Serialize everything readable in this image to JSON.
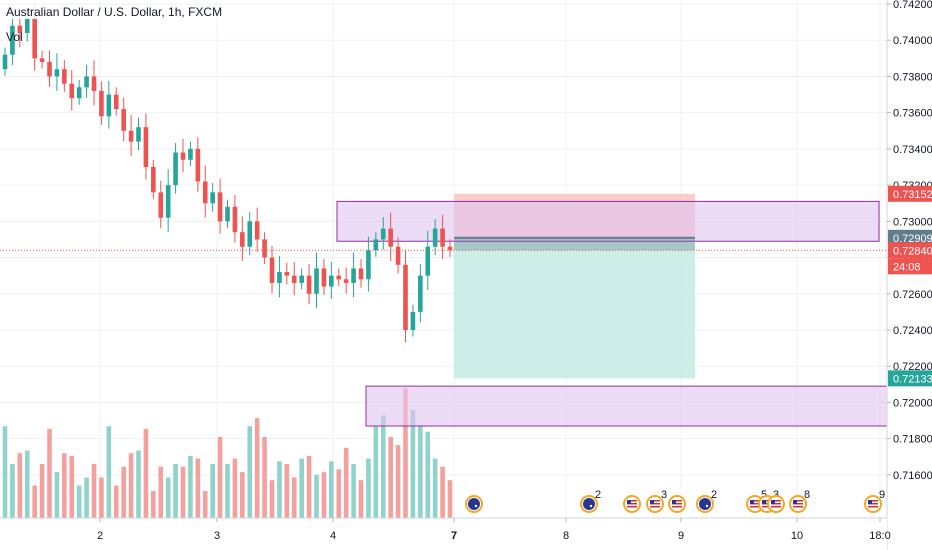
{
  "header": {
    "symbol_title": "Australian Dollar / U.S. Dollar, 1h, FXCM",
    "volume_label": "Vol"
  },
  "colors": {
    "up": "#26a69a",
    "down": "#ef5350",
    "up_volume": "#8fd3cb",
    "down_volume": "#f4a09e",
    "zone_fill": "#e1c4ef",
    "zone_border": "#9c27b0",
    "stop_zone": "#f7c6c4",
    "target_zone": "#c7ebe5",
    "grid": "#eef0f3",
    "position_line": "#607d8b",
    "price_line": "#ef5350"
  },
  "price_scale": {
    "ticks": [
      "0.74200",
      "0.74000",
      "0.73800",
      "0.73600",
      "0.73400",
      "0.73200",
      "0.73000",
      "0.72800",
      "0.72600",
      "0.72400",
      "0.72200",
      "0.72000",
      "0.71800",
      "0.71600"
    ],
    "badges": [
      {
        "text": "0.73152",
        "color": "#ef5350"
      },
      {
        "text": "0.72909",
        "color": "#607d8b"
      },
      {
        "text": "0.72840",
        "color": "#ef5350"
      },
      {
        "text": "24:08",
        "color": "#ef5350"
      },
      {
        "text": "0.72133",
        "color": "#26a69a"
      }
    ]
  },
  "time_scale": {
    "ticks": [
      "2",
      "3",
      "4",
      "7",
      "8",
      "9",
      "10",
      "18:0"
    ],
    "bold_tick": "7"
  },
  "events": [
    {
      "flag": "AU",
      "count": ""
    },
    {
      "flag": "AU",
      "count": "2"
    },
    {
      "flag": "US",
      "count": ""
    },
    {
      "flag": "US",
      "count": "3"
    },
    {
      "flag": "US",
      "count": ""
    },
    {
      "flag": "AU",
      "count": "2"
    },
    {
      "flag": "US",
      "count": "5"
    },
    {
      "flag": "US",
      "count": "3"
    },
    {
      "flag": "US",
      "count": ""
    },
    {
      "flag": "US",
      "count": "8"
    },
    {
      "flag": "US",
      "count": "9"
    }
  ],
  "chart_data": {
    "type": "candlestick",
    "title": "Australian Dollar / U.S. Dollar, 1h, FXCM",
    "ylim": [
      0.715,
      0.742
    ],
    "y_tick_step": 0.002,
    "x_tick_labels": [
      "2",
      "3",
      "4",
      "7",
      "8",
      "9",
      "10",
      "18:0"
    ],
    "close_path": [
      0.7392,
      0.7408,
      0.7404,
      0.7412,
      0.739,
      0.7388,
      0.738,
      0.7384,
      0.7376,
      0.7368,
      0.7374,
      0.738,
      0.7372,
      0.7358,
      0.737,
      0.7362,
      0.735,
      0.7344,
      0.7352,
      0.733,
      0.7316,
      0.7302,
      0.732,
      0.7338,
      0.7334,
      0.734,
      0.7322,
      0.731,
      0.7316,
      0.73,
      0.7308,
      0.7294,
      0.7286,
      0.73,
      0.729,
      0.728,
      0.7266,
      0.7272,
      0.727,
      0.7266,
      0.727,
      0.726,
      0.7274,
      0.7264,
      0.727,
      0.7268,
      0.7266,
      0.7274,
      0.7268,
      0.7284,
      0.729,
      0.7296,
      0.7286,
      0.7276,
      0.724,
      0.725,
      0.727,
      0.7286,
      0.7296,
      0.7286,
      0.7284
    ],
    "volume": [
      34,
      20,
      24,
      25,
      12,
      20,
      33,
      17,
      24,
      23,
      12,
      15,
      20,
      15,
      34,
      12,
      19,
      24,
      25,
      33,
      10,
      19,
      15,
      20,
      19,
      23,
      22,
      10,
      20,
      30,
      20,
      22,
      17,
      34,
      37,
      30,
      14,
      21,
      20,
      15,
      22,
      23,
      16,
      17,
      21,
      18,
      26,
      20,
      14,
      22,
      34,
      38,
      30,
      27,
      48,
      40,
      34,
      32,
      22,
      19,
      14
    ],
    "zones": [
      {
        "name": "supply",
        "from": 0.7289,
        "to": 0.7311
      },
      {
        "name": "demand",
        "from": 0.7187,
        "to": 0.7209
      }
    ],
    "short_position": {
      "entry": 0.72909,
      "stop": 0.73152,
      "target": 0.72133
    },
    "last_price": 0.7284,
    "countdown": "24:08"
  }
}
